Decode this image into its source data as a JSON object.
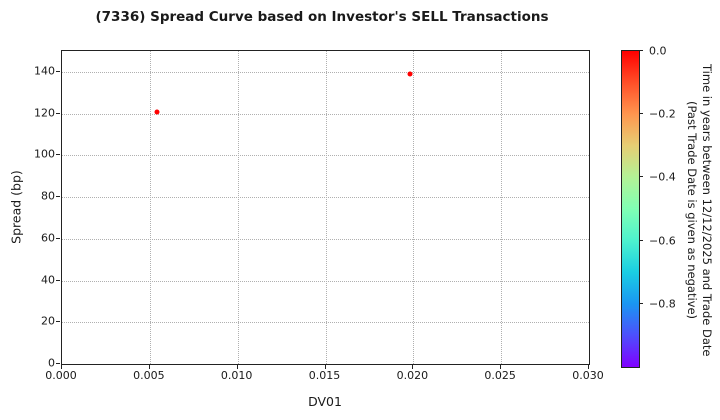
{
  "figure": {
    "background": "#ffffff"
  },
  "chart_data": {
    "type": "scatter",
    "title": "(7336)   Spread Curve based on Investor's SELL Transactions",
    "xlabel": "DV01",
    "ylabel": "Spread (bp)",
    "xlim": [
      0.0,
      0.03
    ],
    "ylim": [
      0,
      150
    ],
    "grid": true,
    "grid_style": "dotted",
    "grid_color": "#b0b0b0",
    "marker_color": "#ff0000",
    "points": [
      {
        "x": 0.0054,
        "y": 121,
        "color": "#ff0000"
      },
      {
        "x": 0.0198,
        "y": 139,
        "color": "#ff0000"
      }
    ],
    "xticks": [
      {
        "value": 0.0,
        "label": "0.000"
      },
      {
        "value": 0.005,
        "label": "0.005"
      },
      {
        "value": 0.01,
        "label": "0.010"
      },
      {
        "value": 0.015,
        "label": "0.015"
      },
      {
        "value": 0.02,
        "label": "0.020"
      },
      {
        "value": 0.025,
        "label": "0.025"
      },
      {
        "value": 0.03,
        "label": "0.030"
      }
    ],
    "yticks": [
      {
        "value": 0,
        "label": "0"
      },
      {
        "value": 20,
        "label": "20"
      },
      {
        "value": 40,
        "label": "40"
      },
      {
        "value": 60,
        "label": "60"
      },
      {
        "value": 80,
        "label": "80"
      },
      {
        "value": 100,
        "label": "100"
      },
      {
        "value": 120,
        "label": "120"
      },
      {
        "value": 140,
        "label": "140"
      }
    ],
    "colorbar": {
      "label_line1": "Time in years between 12/12/2025 and Trade Date",
      "label_line2": "(Past Trade Date is given as negative)",
      "colormap": "rainbow",
      "range": [
        -1.0,
        0.0
      ],
      "ticks": [
        {
          "value": 0.0,
          "label": "0.0"
        },
        {
          "value": -0.2,
          "label": "−0.2"
        },
        {
          "value": -0.4,
          "label": "−0.4"
        },
        {
          "value": -0.6,
          "label": "−0.6"
        },
        {
          "value": -0.8,
          "label": "−0.8"
        }
      ],
      "gradient": [
        {
          "pos": 0,
          "color": "#ff0000"
        },
        {
          "pos": 10,
          "color": "#ff4f28"
        },
        {
          "pos": 20,
          "color": "#ff964f"
        },
        {
          "pos": 30,
          "color": "#e6ce74"
        },
        {
          "pos": 40,
          "color": "#b3f296"
        },
        {
          "pos": 50,
          "color": "#80ffb4"
        },
        {
          "pos": 60,
          "color": "#4df2ce"
        },
        {
          "pos": 70,
          "color": "#1acee3"
        },
        {
          "pos": 80,
          "color": "#1a96f2"
        },
        {
          "pos": 90,
          "color": "#4d4ffc"
        },
        {
          "pos": 100,
          "color": "#8000ff"
        }
      ]
    }
  }
}
